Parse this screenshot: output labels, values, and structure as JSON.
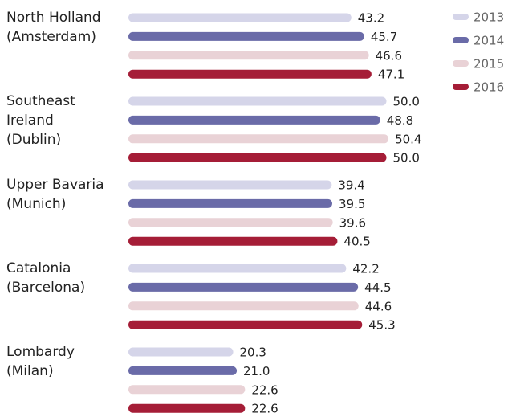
{
  "chart_data": {
    "type": "bar",
    "orientation": "horizontal",
    "categories": [
      "North Holland\n(Amsterdam)",
      "Southeast\nIreland\n(Dublin)",
      "Upper Bavaria\n(Munich)",
      "Catalonia\n(Barcelona)",
      "Lombardy\n(Milan)"
    ],
    "series": [
      {
        "name": "2013",
        "color": "#d5d5e9",
        "values": [
          43.2,
          50.0,
          39.4,
          42.2,
          20.3
        ],
        "value_labels": [
          "43.2",
          "50.0",
          "39.4",
          "42.2",
          "20.3"
        ]
      },
      {
        "name": "2014",
        "color": "#6a6ba8",
        "values": [
          45.7,
          48.8,
          39.5,
          44.5,
          21.0
        ],
        "value_labels": [
          "45.7",
          "48.8",
          "39.5",
          "44.5",
          "21.0"
        ]
      },
      {
        "name": "2015",
        "color": "#e9d2d6",
        "values": [
          46.6,
          50.4,
          39.6,
          44.6,
          22.6
        ],
        "value_labels": [
          "46.6",
          "50.4",
          "39.6",
          "44.6",
          "22.6"
        ]
      },
      {
        "name": "2016",
        "color": "#a51d37",
        "values": [
          47.1,
          50.0,
          40.5,
          45.3,
          22.6
        ],
        "value_labels": [
          "47.1",
          "50.0",
          "40.5",
          "45.3",
          "22.6"
        ]
      }
    ],
    "legend": "top-right"
  }
}
